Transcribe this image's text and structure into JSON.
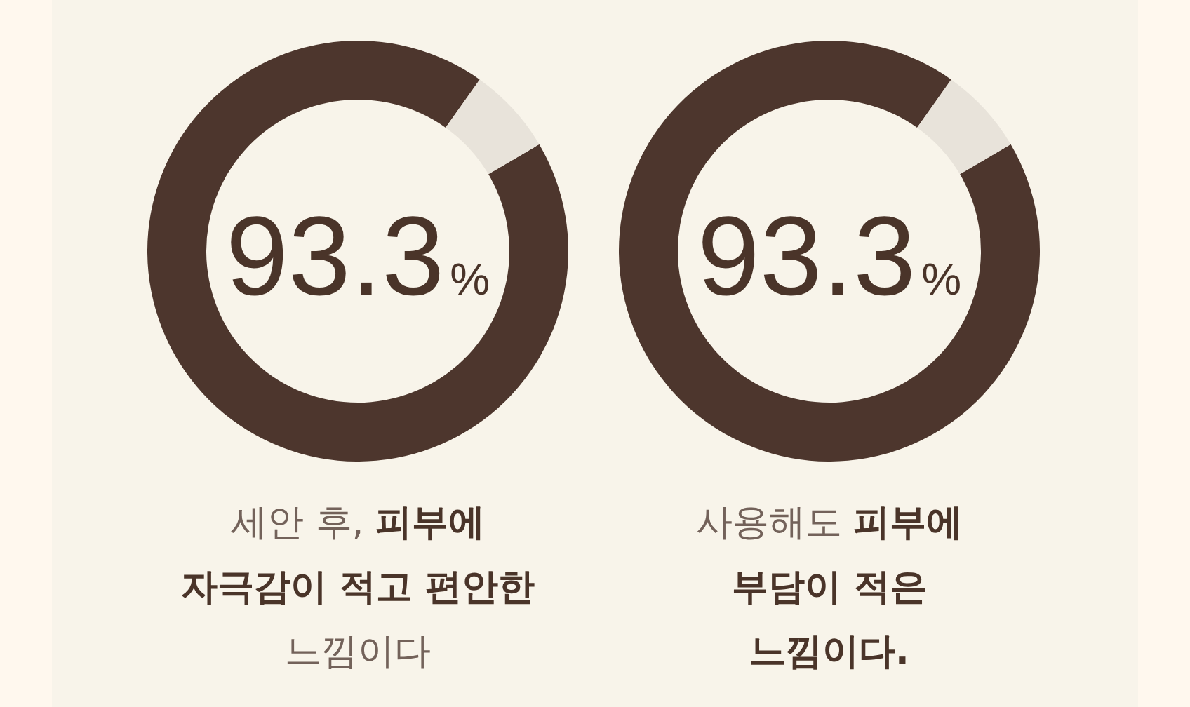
{
  "chart_data": [
    {
      "type": "donut",
      "categories": [
        null,
        null
      ],
      "values": [
        93.3,
        6.7
      ],
      "colors": [
        "#4d362d",
        "#e8e3da"
      ],
      "value_labels": [
        "93.3%",
        null
      ],
      "annotations": [
        "세안 후,",
        "피부에",
        "자극감이 적고 편안한",
        "느낌이다"
      ]
    },
    {
      "type": "donut",
      "categories": [
        null,
        null
      ],
      "values": [
        93.3,
        6.7
      ],
      "colors": [
        "#4d362d",
        "#e8e3da"
      ],
      "value_labels": [
        "93.3%",
        null
      ],
      "annotations": [
        "사용해도",
        "피부에",
        "부담이 적은",
        "느낌이다."
      ]
    }
  ]
}
